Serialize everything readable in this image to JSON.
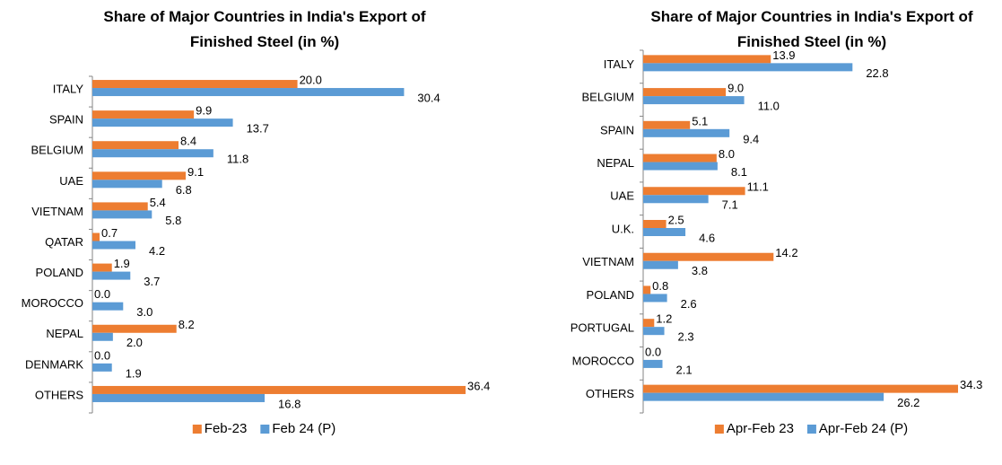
{
  "chart_data": [
    {
      "type": "bar",
      "orientation": "horizontal",
      "title": "Share of Major Countries in India's Export of Finished Steel (in %)",
      "categories": [
        "ITALY",
        "SPAIN",
        "BELGIUM",
        "UAE",
        "VIETNAM",
        "QATAR",
        "POLAND",
        "MOROCCO",
        "NEPAL",
        "DENMARK",
        "OTHERS"
      ],
      "series": [
        {
          "name": "Feb-23",
          "color": "#ED7D31",
          "values": [
            20,
            9.9,
            8.4,
            9.1,
            5.4,
            0.7,
            1.9,
            0,
            8.2,
            0,
            36.4
          ],
          "value_labels": [
            "20.0",
            "9.9",
            "8.4",
            "9.1",
            "5.4",
            "0.7",
            "1.9",
            "0.0",
            "8.2",
            "0.0",
            "36.4"
          ]
        },
        {
          "name": "Feb 24 (P)",
          "color": "#5B9BD5",
          "values": [
            30.4,
            13.7,
            11.8,
            6.8,
            5.8,
            4.2,
            3.7,
            3,
            2,
            1.9,
            16.8
          ],
          "value_labels": [
            "30.4",
            "13.7",
            "11.8",
            "6.8",
            "5.8",
            "4.2",
            "3.7",
            "3.0",
            "2.0",
            "1.9",
            "16.8"
          ]
        }
      ],
      "legend": "bottom"
    },
    {
      "type": "bar",
      "orientation": "horizontal",
      "title": "Share of Major Countries in India's Export of Finished Steel (in %)",
      "categories": [
        "ITALY",
        "BELGIUM",
        "SPAIN",
        "NEPAL",
        "UAE",
        "U.K.",
        "VIETNAM",
        "POLAND",
        "PORTUGAL",
        "MOROCCO",
        "OTHERS"
      ],
      "series": [
        {
          "name": "Apr-Feb 23",
          "color": "#ED7D31",
          "values": [
            13.9,
            9,
            5.1,
            8,
            11.1,
            2.5,
            14.2,
            0.8,
            1.2,
            0,
            34.3
          ],
          "value_labels": [
            "13.9",
            "9.0",
            "5.1",
            "8.0",
            "11.1",
            "2.5",
            "14.2",
            "0.8",
            "1.2",
            "0.0",
            "34.3"
          ]
        },
        {
          "name": "Apr-Feb 24 (P)",
          "color": "#5B9BD5",
          "values": [
            22.8,
            11,
            9.4,
            8.1,
            7.1,
            4.6,
            3.8,
            2.6,
            2.3,
            2.1,
            26.2
          ],
          "value_labels": [
            "22.8",
            "11.0",
            "9.4",
            "8.1",
            "7.1",
            "4.6",
            "3.8",
            "2.6",
            "2.3",
            "2.1",
            "26.2"
          ]
        }
      ],
      "legend": "bottom"
    }
  ]
}
